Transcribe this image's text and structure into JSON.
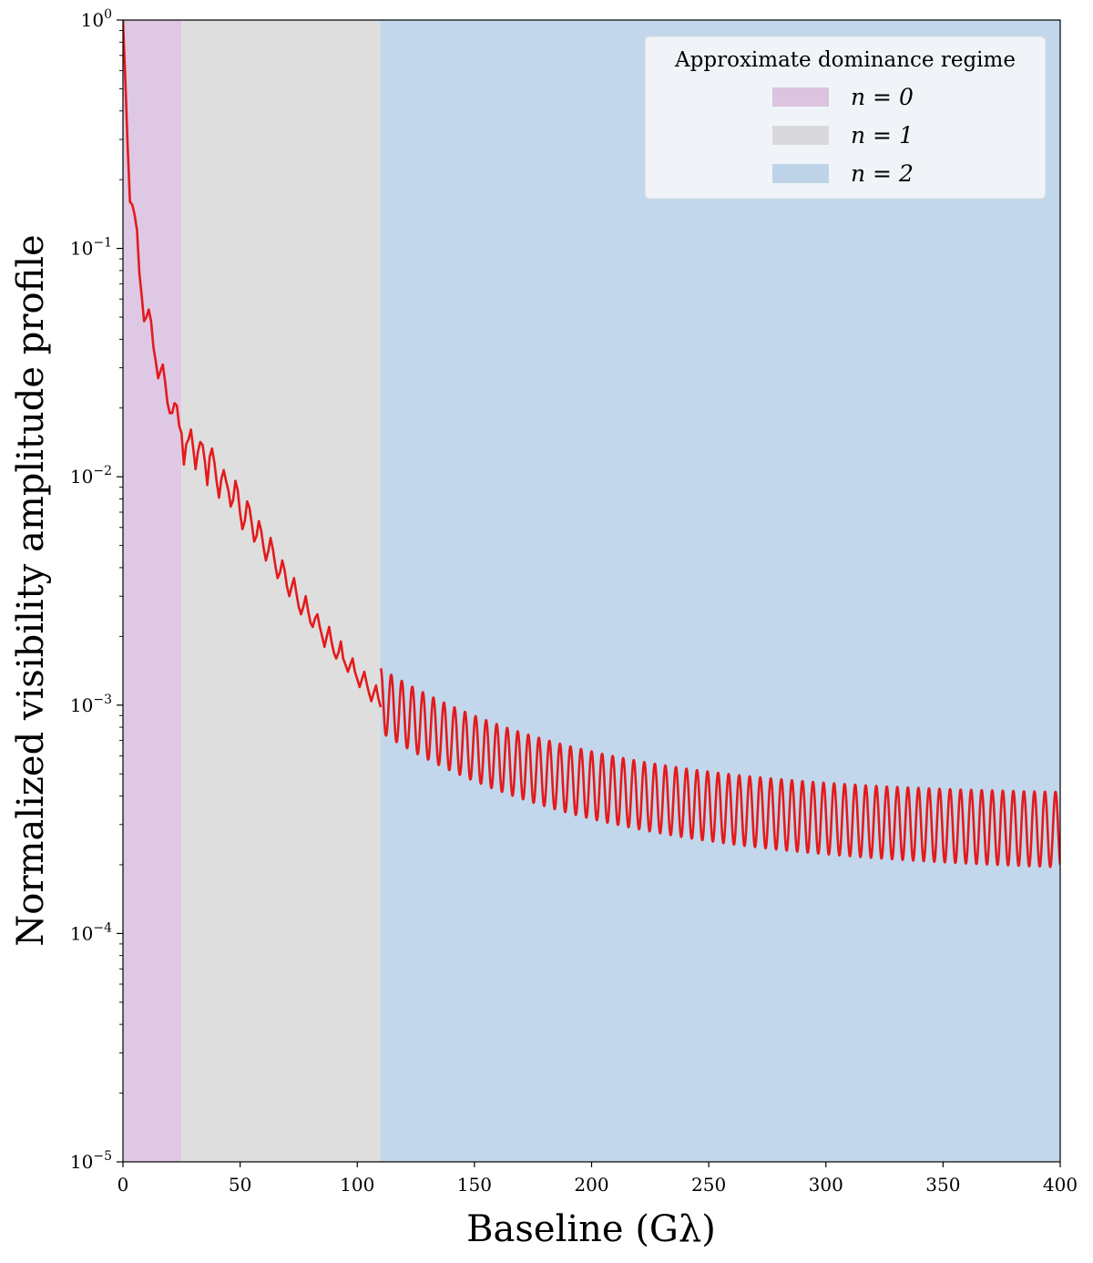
{
  "chart_data": {
    "type": "line",
    "title": "",
    "xlabel": "Baseline (Gλ)",
    "ylabel": "Normalized visibility amplitude profile",
    "xlim": [
      0,
      400
    ],
    "ylim": [
      1e-05,
      1
    ],
    "yscale": "log",
    "grid": false,
    "legend_position": "top-right",
    "x_ticks": [
      {
        "value": 0,
        "label": "0"
      },
      {
        "value": 50,
        "label": "50"
      },
      {
        "value": 100,
        "label": "100"
      },
      {
        "value": 150,
        "label": "150"
      },
      {
        "value": 200,
        "label": "200"
      },
      {
        "value": 250,
        "label": "250"
      },
      {
        "value": 300,
        "label": "300"
      },
      {
        "value": 350,
        "label": "350"
      },
      {
        "value": 400,
        "label": "400"
      }
    ],
    "y_ticks": [
      {
        "value": 1,
        "base": "10",
        "exp": "0"
      },
      {
        "value": 0.1,
        "base": "10",
        "exp": "−1"
      },
      {
        "value": 0.01,
        "base": "10",
        "exp": "−2"
      },
      {
        "value": 0.001,
        "base": "10",
        "exp": "−3"
      },
      {
        "value": 0.0001,
        "base": "10",
        "exp": "−4"
      },
      {
        "value": 1e-05,
        "base": "10",
        "exp": "−5"
      }
    ],
    "legend_title": "Approximate dominance regime",
    "regions": [
      {
        "label": "n = 0",
        "x_start": 0,
        "x_end": 25,
        "color": "#dfc8e3",
        "legend_color": "#dcc4e0"
      },
      {
        "label": "n = 1",
        "x_start": 25,
        "x_end": 110,
        "color": "#dedede",
        "legend_color": "#d9d9db"
      },
      {
        "label": "n = 2",
        "x_start": 110,
        "x_end": 400,
        "color": "#c2d7eb",
        "legend_color": "#bed3e8"
      }
    ],
    "series": [
      {
        "color": "#e41a1c",
        "x": [
          0,
          1,
          2,
          3,
          4,
          5,
          6,
          7,
          8,
          9,
          10,
          11,
          12,
          13,
          14,
          15,
          16,
          17,
          18,
          19,
          20,
          21,
          22,
          23,
          24,
          25,
          26,
          27,
          28,
          29,
          30,
          31,
          32,
          33,
          34,
          35,
          36,
          37,
          38,
          39,
          40,
          41,
          42,
          43,
          44,
          45,
          46,
          47,
          48,
          49,
          50,
          51,
          52,
          53,
          54,
          55,
          56,
          57,
          58,
          59,
          60,
          61,
          62,
          63,
          64,
          65,
          66,
          67,
          68,
          69,
          70,
          71,
          72,
          73,
          74,
          75,
          76,
          77,
          78,
          79,
          80,
          81,
          82,
          83,
          84,
          85,
          86,
          87,
          88,
          89,
          90,
          91,
          92,
          93,
          94,
          95,
          96,
          97,
          98,
          99,
          100,
          101,
          102,
          103,
          104,
          105,
          106,
          107,
          108,
          109,
          110
        ],
        "y": [
          1.0,
          0.55,
          0.28,
          0.16,
          0.155,
          0.14,
          0.12,
          0.078,
          0.062,
          0.048,
          0.05,
          0.054,
          0.048,
          0.037,
          0.032,
          0.027,
          0.029,
          0.031,
          0.026,
          0.021,
          0.019,
          0.019,
          0.021,
          0.0205,
          0.0167,
          0.0155,
          0.0113,
          0.0139,
          0.0146,
          0.0161,
          0.0133,
          0.0108,
          0.0129,
          0.0142,
          0.0138,
          0.0116,
          0.0092,
          0.0122,
          0.0133,
          0.0116,
          0.0095,
          0.0081,
          0.0098,
          0.0107,
          0.0096,
          0.0087,
          0.0074,
          0.0079,
          0.0096,
          0.0087,
          0.0069,
          0.0059,
          0.0064,
          0.0078,
          0.0073,
          0.0062,
          0.0052,
          0.0055,
          0.0064,
          0.0058,
          0.0049,
          0.0043,
          0.0047,
          0.0054,
          0.0048,
          0.0041,
          0.0036,
          0.0038,
          0.0043,
          0.0039,
          0.0033,
          0.003,
          0.0033,
          0.0036,
          0.0031,
          0.0027,
          0.0025,
          0.0027,
          0.003,
          0.0026,
          0.0023,
          0.0022,
          0.0024,
          0.0025,
          0.0022,
          0.002,
          0.0018,
          0.002,
          0.0022,
          0.0019,
          0.0017,
          0.0016,
          0.0017,
          0.0019,
          0.0016,
          0.0015,
          0.0014,
          0.0015,
          0.0016,
          0.0014,
          0.0013,
          0.0012,
          0.0013,
          0.0014,
          0.00125,
          0.00113,
          0.00104,
          0.00113,
          0.00122,
          0.00107,
          0.00098
        ]
      },
      {
        "color": "#e41a1c",
        "x_start": 110,
        "x_end": 400,
        "period": 4.5,
        "center_at_start": 0.00105,
        "center_at_end": 0.000285,
        "ripple_at_start": 0.14,
        "ripple_at_end": 0.165
      }
    ]
  }
}
